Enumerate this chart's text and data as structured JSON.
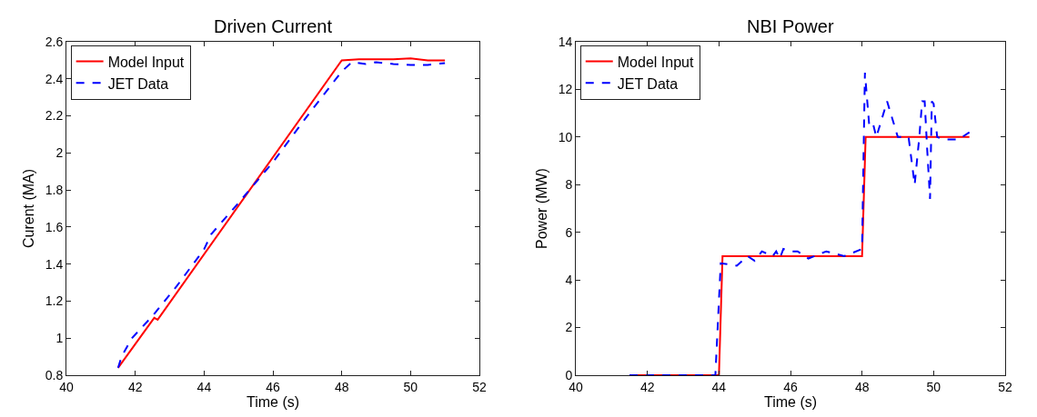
{
  "chart_data": [
    {
      "type": "line",
      "title": "Driven Current",
      "xlabel": "Time (s)",
      "ylabel": "Curent (MA)",
      "xlim": [
        40,
        52
      ],
      "xticks": [
        40,
        42,
        44,
        46,
        48,
        50,
        52
      ],
      "ylim": [
        0.8,
        2.6
      ],
      "yticks": [
        {
          "value": 0.8,
          "label": "0.8"
        },
        1,
        1.2,
        1.4,
        1.6,
        1.8,
        2,
        2.2,
        2.4,
        2.6
      ],
      "legend": "top left",
      "series": [
        {
          "name": "Model Input",
          "color": "#ff0000",
          "line_style": "solid",
          "x": [
            41.5,
            42.55,
            42.65,
            48.0,
            48.5,
            49.0,
            49.5,
            50.0,
            50.5,
            51.0
          ],
          "values": [
            0.84,
            1.11,
            1.1,
            2.5,
            2.505,
            2.505,
            2.505,
            2.51,
            2.5,
            2.5
          ]
        },
        {
          "name": "JET Data",
          "color": "#0000ff",
          "line_style": "dashed",
          "x": [
            41.5,
            41.6,
            41.9,
            42.5,
            43.2,
            44.0,
            44.2,
            45.0,
            46.0,
            47.0,
            47.5,
            48.0,
            48.3,
            48.7,
            49.0,
            49.5,
            50.0,
            50.5,
            51.0
          ],
          "values": [
            0.84,
            0.9,
            1.0,
            1.12,
            1.28,
            1.48,
            1.56,
            1.73,
            1.95,
            2.2,
            2.32,
            2.44,
            2.49,
            2.48,
            2.49,
            2.48,
            2.475,
            2.475,
            2.485
          ]
        }
      ]
    },
    {
      "type": "line",
      "title": "NBI Power",
      "xlabel": "Time (s)",
      "ylabel": "Power (MW)",
      "xlim": [
        40,
        52
      ],
      "xticks": [
        40,
        42,
        44,
        46,
        48,
        50,
        52
      ],
      "ylim": [
        0,
        14
      ],
      "yticks": [
        0,
        2,
        4,
        6,
        8,
        10,
        12,
        14
      ],
      "legend": "top left",
      "series": [
        {
          "name": "Model Input",
          "color": "#ff0000",
          "line_style": "solid",
          "x": [
            41.5,
            44.0,
            44.1,
            48.0,
            48.1,
            51.0
          ],
          "values": [
            0,
            0,
            5,
            5,
            10,
            10
          ]
        },
        {
          "name": "JET Data",
          "color": "#0000ff",
          "line_style": "dashed",
          "x": [
            41.5,
            43.9,
            44.05,
            44.5,
            44.8,
            45.0,
            45.2,
            45.5,
            45.6,
            45.7,
            45.8,
            46.0,
            46.2,
            46.5,
            47.0,
            47.5,
            48.0,
            48.05,
            48.08,
            48.2,
            48.3,
            48.4,
            48.7,
            49.0,
            49.3,
            49.47,
            49.6,
            49.68,
            49.75,
            49.82,
            49.9,
            49.95,
            50.0,
            50.1,
            50.3,
            50.7,
            51.0
          ],
          "values": [
            0,
            0,
            4.7,
            4.6,
            5.0,
            4.8,
            5.2,
            5.0,
            5.2,
            4.9,
            5.3,
            5.2,
            5.2,
            4.9,
            5.2,
            5.0,
            5.3,
            10,
            12.7,
            10.5,
            10.6,
            10,
            11.5,
            10,
            10,
            8.0,
            10,
            11.5,
            11.5,
            9.5,
            7.4,
            11.5,
            11.4,
            10,
            9.9,
            9.9,
            10.2
          ]
        }
      ]
    }
  ]
}
